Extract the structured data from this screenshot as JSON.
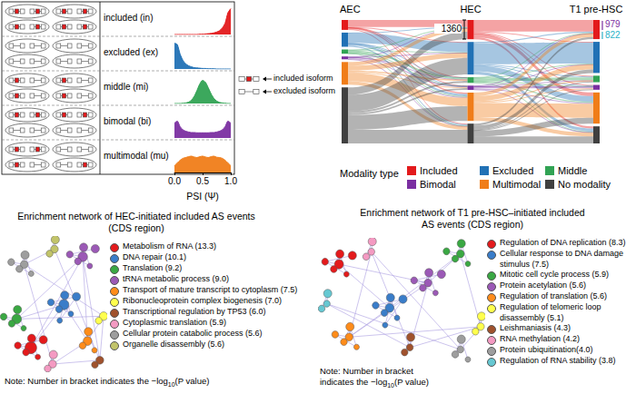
{
  "chart_data": [
    {
      "type": "density",
      "x": [
        0,
        0.05,
        0.1,
        0.15,
        0.2,
        0.25,
        0.3,
        0.35,
        0.4,
        0.45,
        0.5,
        0.55,
        0.6,
        0.65,
        0.7,
        0.75,
        0.8,
        0.85,
        0.9,
        0.95,
        1
      ],
      "series": [
        {
          "name": "included (in)",
          "color": "#e31a1c",
          "values": [
            0,
            0,
            0,
            0,
            0,
            0,
            0,
            0,
            0,
            0.01,
            0.01,
            0.02,
            0.03,
            0.04,
            0.06,
            0.09,
            0.14,
            0.24,
            0.42,
            0.8,
            0.95
          ]
        },
        {
          "name": "excluded (ex)",
          "color": "#2171b5",
          "values": [
            0.95,
            0.9,
            0.55,
            0.32,
            0.19,
            0.12,
            0.08,
            0.05,
            0.04,
            0.03,
            0.02,
            0.02,
            0.01,
            0.01,
            0.01,
            0,
            0,
            0,
            0,
            0,
            0
          ]
        },
        {
          "name": "middle (mi)",
          "color": "#31a354",
          "values": [
            0,
            0,
            0,
            0.01,
            0.02,
            0.05,
            0.12,
            0.26,
            0.48,
            0.72,
            0.85,
            0.78,
            0.58,
            0.36,
            0.19,
            0.09,
            0.04,
            0.02,
            0.01,
            0,
            0
          ]
        },
        {
          "name": "bimodal (bi)",
          "color": "#7b2fa1",
          "values": [
            0.55,
            0.62,
            0.42,
            0.3,
            0.25,
            0.22,
            0.2,
            0.2,
            0.19,
            0.19,
            0.19,
            0.19,
            0.19,
            0.2,
            0.2,
            0.22,
            0.25,
            0.3,
            0.42,
            0.62,
            0.55
          ]
        },
        {
          "name": "multimodal (mu)",
          "color": "#f07d19",
          "values": [
            0.25,
            0.35,
            0.45,
            0.52,
            0.55,
            0.58,
            0.6,
            0.57,
            0.55,
            0.58,
            0.6,
            0.57,
            0.55,
            0.58,
            0.6,
            0.56,
            0.55,
            0.52,
            0.45,
            0.35,
            0.25
          ]
        }
      ],
      "xlim": [
        0,
        1
      ],
      "xticks": [
        {
          "value": 0,
          "label": "0.0"
        },
        0.5,
        {
          "value": 1,
          "label": "1.0"
        }
      ],
      "ylim": [
        0,
        1
      ],
      "x_label": "PSI (Ψ)",
      "tick_labels": "x",
      "annotations": [
        "included isoform",
        "excluded isoform"
      ]
    },
    {
      "type": "sankey",
      "stages": [
        "AEC",
        "HEC",
        "T1 pre-HSC"
      ],
      "legend_title": "Modality type",
      "series": [
        {
          "name": "Included",
          "color": "#e31a1c"
        },
        {
          "name": "Excluded",
          "color": "#2171b5"
        },
        {
          "name": "Middle",
          "color": "#31a354"
        },
        {
          "name": "Bimodal",
          "color": "#7b2fa1"
        },
        {
          "name": "Multimodal",
          "color": "#f07d19"
        },
        {
          "name": "No modality",
          "color": "#404040"
        }
      ],
      "flows": [
        [
          [
            500,
            20,
            10,
            10,
            100,
            60
          ],
          [
            30,
            700,
            20,
            20,
            150,
            80
          ],
          [
            40,
            40,
            120,
            10,
            60,
            30
          ],
          [
            20,
            20,
            10,
            80,
            50,
            20
          ],
          [
            250,
            350,
            100,
            60,
            600,
            240
          ],
          [
            520,
            1170,
            140,
            120,
            1040,
            970
          ]
        ],
        [
          [
            822,
            40,
            60,
            40,
            250,
            148
          ],
          [
            80,
            1500,
            60,
            40,
            400,
            220
          ],
          [
            30,
            40,
            200,
            10,
            80,
            40
          ],
          [
            20,
            20,
            10,
            150,
            60,
            40
          ],
          [
            250,
            350,
            80,
            60,
            1000,
            260
          ],
          [
            150,
            250,
            50,
            40,
            410,
            500
          ]
        ]
      ],
      "annotations": [
        {
          "value": 1360,
          "color": "#000000"
        },
        {
          "value": 979,
          "color": "#7b2fa1"
        },
        {
          "value": 822,
          "color": "#2ab3c8"
        }
      ]
    },
    {
      "type": "graph",
      "title": "Enrichment network of HEC-initiated included AS events (CDS region)",
      "items": [
        {
          "label": "Metabolism of RNA (13.3)",
          "value": 13.3,
          "color": "#e41a1c"
        },
        {
          "label": "DNA repair (10.1)",
          "value": 10.1,
          "color": "#3a7dc9"
        },
        {
          "label": "Translation (9.2)",
          "value": 9.2,
          "color": "#3aa843"
        },
        {
          "label": "tRNA metabolic process (9.0)",
          "value": 9.0,
          "color": "#9b59b6"
        },
        {
          "label": "Transport of mature transcript to cytoplasm (7.5)",
          "value": 7.5,
          "color": "#ff8c1a"
        },
        {
          "label": "Ribonucleoprotein complex biogenesis (7.0)",
          "value": 7.0,
          "color": "#ffff4d"
        },
        {
          "label": "Transcriptional regulation by TP53 (6.0)",
          "value": 6.0,
          "color": "#a0522d"
        },
        {
          "label": "Cytoplasmic translation (5.9)",
          "value": 5.9,
          "color": "#f49ac2"
        },
        {
          "label": "Cellular protein catabolic process (5.6)",
          "value": 5.6,
          "color": "#9e9e9e"
        },
        {
          "label": "Organelle disassembly (5.6)",
          "value": 5.6,
          "color": "#c2c46a"
        }
      ],
      "note": {
        "prefix": "Note: Number in bracket indicates the −log",
        "subscript": "10",
        "suffix": "(P value)"
      }
    },
    {
      "type": "graph",
      "title": "Enrichment network of T1 pre-HSC–initiated included AS events (CDS region)",
      "items": [
        {
          "label": "Regulation of DNA replication (8.3)",
          "value": 8.3,
          "color": "#e41a1c"
        },
        {
          "label": "Cellular response to DNA damage stimulus (7.5)",
          "value": 7.5,
          "color": "#3a7dc9"
        },
        {
          "label": "Mitotic cell cycle process (5.9)",
          "value": 5.9,
          "color": "#3aa843"
        },
        {
          "label": "Protein acetylation (5.6)",
          "value": 5.6,
          "color": "#9b59b6"
        },
        {
          "label": "Regulation of translation (5.6)",
          "value": 5.6,
          "color": "#ff8c1a"
        },
        {
          "label": "Regulation of telomeric loop disassembly (5.1)",
          "value": 5.1,
          "color": "#ffff4d"
        },
        {
          "label": "Leishmaniasis (4.3)",
          "value": 4.3,
          "color": "#a0522d"
        },
        {
          "label": "RNA methylation (4.2)",
          "value": 4.2,
          "color": "#f49ac2"
        },
        {
          "label": "Protein ubiquitination(4.0)",
          "value": 4.0,
          "color": "#9e9e9e"
        },
        {
          "label": "Regulation of RNA stability (3.8)",
          "value": 3.8,
          "color": "#66c8d2"
        }
      ],
      "note": {
        "prefix": "Note: Number in bracket indicates the −log",
        "subscript": "10",
        "suffix": "(P value)"
      }
    }
  ]
}
